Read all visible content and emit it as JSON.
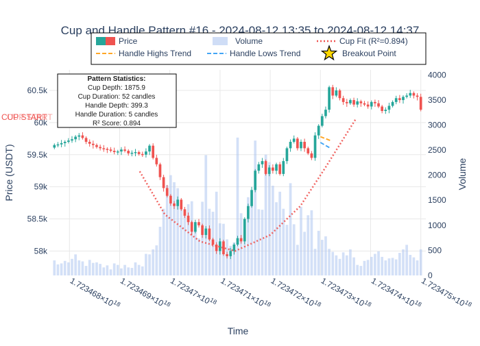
{
  "chart_data": {
    "type": "candlestick",
    "title": "Cup and Handle Pattern #16 - 2024-08-12 13:35 to 2024-08-12 14:37",
    "xlabel": "Time",
    "ylabel": "Price (USDT)",
    "y2label": "Volume",
    "x_tick_labels": [
      {
        "value": 1.723468e+18,
        "mantissa": "1.723468",
        "base": "10",
        "exp": "18"
      },
      {
        "value": 1.723469e+18,
        "mantissa": "1.723469",
        "base": "10",
        "exp": "18"
      },
      {
        "value": 1.72347e+18,
        "mantissa": "1.72347",
        "base": "10",
        "exp": "18"
      },
      {
        "value": 1.723471e+18,
        "mantissa": "1.723471",
        "base": "10",
        "exp": "18"
      },
      {
        "value": 1.723472e+18,
        "mantissa": "1.723472",
        "base": "10",
        "exp": "18"
      },
      {
        "value": 1.723473e+18,
        "mantissa": "1.723473",
        "base": "10",
        "exp": "18"
      },
      {
        "value": 1.723474e+18,
        "mantissa": "1.723474",
        "base": "10",
        "exp": "18"
      },
      {
        "value": 1.723475e+18,
        "mantissa": "1.723475",
        "base": "10",
        "exp": "18"
      }
    ],
    "y_ticks": [
      58000,
      58500,
      59000,
      59500,
      60000,
      60500
    ],
    "y_tick_labels": [
      "58k",
      "58.5k",
      "59k",
      "59.5k",
      "60k",
      "60.5k"
    ],
    "ylim": [
      57620,
      60820
    ],
    "y2_ticks": [
      0,
      500,
      1000,
      1500,
      2000,
      2500,
      3000,
      3500,
      4000
    ],
    "y2lim": [
      0,
      4100
    ],
    "xlim": [
      1.7234676e+18,
      1.7234751e+18
    ],
    "legend": [
      {
        "name": "Price",
        "kind": "candle"
      },
      {
        "name": "Volume",
        "kind": "bar"
      },
      {
        "name": "Cup Fit (R²=0.894)",
        "kind": "dotted"
      },
      {
        "name": "Handle Highs Trend",
        "kind": "dash-orange"
      },
      {
        "name": "Handle Lows Trend",
        "kind": "dash-blue"
      },
      {
        "name": "Breakout Point",
        "kind": "star"
      }
    ],
    "annotation": "CUP START",
    "stats_box": {
      "title": "Pattern Statistics:",
      "lines": [
        "Cup Depth: 1875.9",
        "Cup Duration: 52 candles",
        "Handle Depth: 399.3",
        "Handle Duration: 5 candles",
        "R² Score: 0.894"
      ]
    },
    "series": [
      {
        "name": "Price",
        "close": [
          59650,
          59660,
          59680,
          59700,
          59720,
          59740,
          59780,
          59800,
          59760,
          59700,
          59670,
          59650,
          59620,
          59600,
          59590,
          59580,
          59560,
          59540,
          59550,
          59580,
          59560,
          59520,
          59530,
          59540,
          59510,
          59500,
          59550,
          59640,
          59450,
          59350,
          59150,
          58980,
          58860,
          58740,
          58700,
          58800,
          58650,
          58550,
          58450,
          58300,
          58450,
          58400,
          58250,
          58350,
          58180,
          58100,
          58000,
          58150,
          57950,
          57920,
          58000,
          58100,
          58200,
          58150,
          58500,
          58700,
          58950,
          59250,
          59350,
          59400,
          59200,
          59300,
          59250,
          59350,
          59200,
          59400,
          59600,
          59700,
          59750,
          59600,
          59700,
          59600,
          59520,
          59450,
          59800,
          59950,
          60100,
          60200,
          60550,
          60420,
          60500,
          60380,
          60320,
          60300,
          60350,
          60280,
          60330,
          60300,
          60280,
          60250,
          60320,
          60300,
          60250,
          60180,
          60200,
          60260,
          60320,
          60380,
          60350,
          60400,
          60420,
          60460,
          60420,
          60400,
          60200
        ]
      },
      {
        "name": "Volume",
        "values": [
          300,
          220,
          240,
          290,
          260,
          330,
          420,
          300,
          280,
          190,
          310,
          250,
          260,
          230,
          160,
          200,
          120,
          240,
          210,
          140,
          210,
          160,
          150,
          260,
          210,
          180,
          430,
          420,
          520,
          600,
          970,
          1330,
          1800,
          2000,
          1860,
          1740,
          1330,
          1290,
          1420,
          1480,
          950,
          740,
          1470,
          2400,
          1330,
          1270,
          1670,
          1040,
          1030,
          720,
          590,
          660,
          2750,
          1240,
          1060,
          1560,
          1530,
          2690,
          1320,
          1310,
          2410,
          2260,
          1790,
          1460,
          1670,
          1330,
          1010,
          1840,
          1020,
          610,
          1370,
          870,
          1200,
          1300,
          530,
          890,
          710,
          780,
          530,
          470,
          400,
          330,
          460,
          400,
          520,
          360,
          210,
          190,
          290,
          310,
          370,
          430,
          480,
          370,
          300,
          340,
          350,
          320,
          450,
          520,
          610,
          410,
          360,
          300,
          520
        ]
      },
      {
        "name": "Cup Fit (R²=0.894)",
        "points": [
          [
            1.7234694e+18,
            59240
          ],
          [
            1.7234699e+18,
            58570
          ],
          [
            1.7234706e+18,
            58150
          ],
          [
            1.7234713e+18,
            58000
          ],
          [
            1.723472e+18,
            58250
          ],
          [
            1.7234726e+18,
            58700
          ],
          [
            1.7234731e+18,
            59300
          ],
          [
            1.7234737e+18,
            60050
          ]
        ]
      },
      {
        "name": "Handle Highs Trend",
        "points": [
          [
            1.723473e+18,
            59780
          ],
          [
            1.7234732e+18,
            59720
          ]
        ]
      },
      {
        "name": "Handle Lows Trend",
        "points": [
          [
            1.723473e+18,
            59690
          ],
          [
            1.7234732e+18,
            59600
          ]
        ]
      }
    ]
  }
}
